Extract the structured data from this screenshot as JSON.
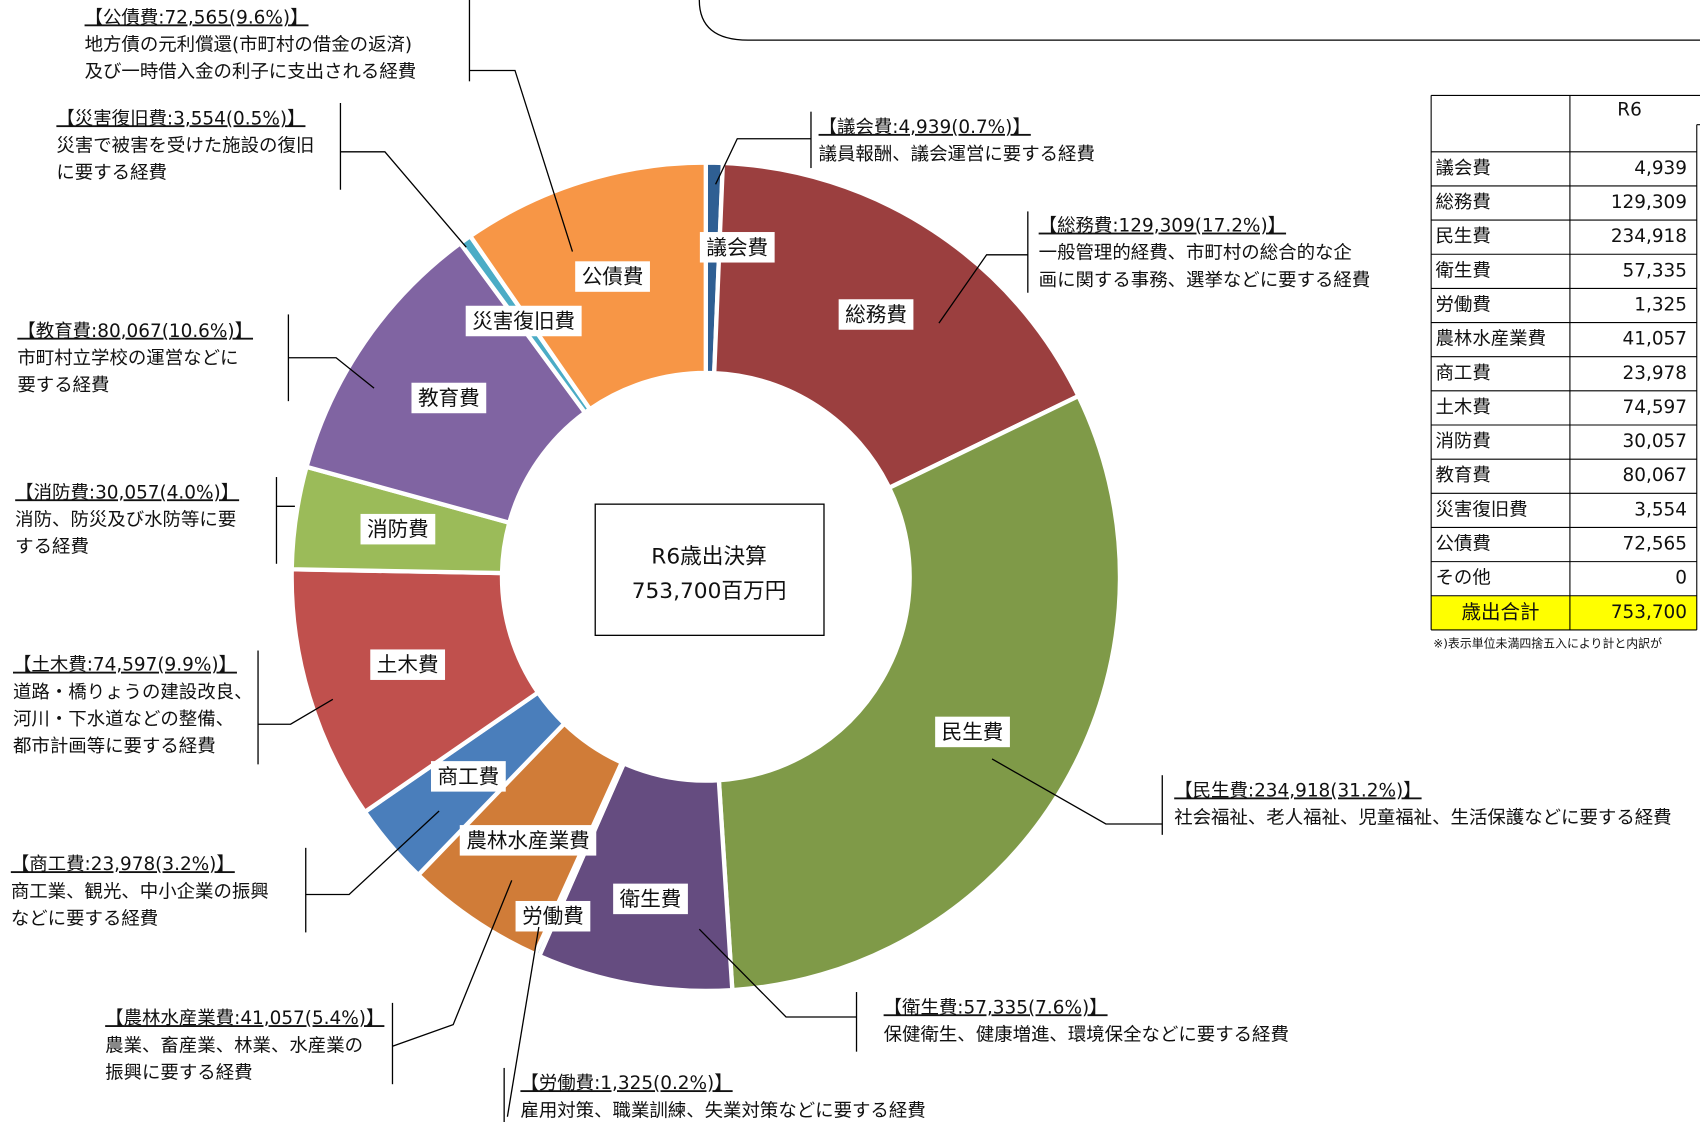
{
  "chart_data": {
    "type": "donut",
    "center_label": [
      "R6歳出決算",
      "753,700百万円"
    ],
    "categories": [
      "議会費",
      "総務費",
      "民生費",
      "衛生費",
      "労働費",
      "農林水産業費",
      "商工費",
      "土木費",
      "消防費",
      "教育費",
      "災害復旧費",
      "公債費"
    ],
    "values": [
      4939,
      129309,
      234918,
      57335,
      1325,
      41057,
      23978,
      74597,
      30057,
      80067,
      3554,
      72565
    ],
    "colors": [
      "#2f5f93",
      "#9b3f3f",
      "#7f9a48",
      "#654c80",
      "#3c9bb5",
      "#d07c38",
      "#4a7ebb",
      "#c0504d",
      "#9bbb59",
      "#8064a2",
      "#4bacc6",
      "#f79646"
    ],
    "callouts": [
      {
        "heading": "【議会費:4,939(0.7%)】",
        "description": [
          "議員報酬、議会運営に要する経費"
        ]
      },
      {
        "heading": "【総務費:129,309(17.2%)】",
        "description": [
          "一般管理的経費、市町村の総合的な企",
          "画に関する事務、選挙などに要する経費"
        ]
      },
      {
        "heading": "【民生費:234,918(31.2%)】",
        "description": [
          "社会福祉、老人福祉、児童福祉、生活保護などに要する経費"
        ]
      },
      {
        "heading": "【衛生費:57,335(7.6%)】",
        "description": [
          "保健衛生、健康増進、環境保全などに要する経費"
        ]
      },
      {
        "heading": "【労働費:1,325(0.2%)】",
        "description": [
          "雇用対策、職業訓練、失業対策などに要する経費"
        ]
      },
      {
        "heading": "【農林水産業費:41,057(5.4%)】",
        "description": [
          "農業、畜産業、林業、水産業の",
          "振興に要する経費"
        ]
      },
      {
        "heading": "【商工費:23,978(3.2%)】",
        "description": [
          "商工業、観光、中小企業の振興",
          "などに要する経費"
        ]
      },
      {
        "heading": "【土木費:74,597(9.9%)】",
        "description": [
          "道路・橋りょうの建設改良、",
          "河川・下水道などの整備、",
          "都市計画等に要する経費"
        ]
      },
      {
        "heading": "【消防費:30,057(4.0%)】",
        "description": [
          "消防、防災及び水防等に要",
          "する経費"
        ]
      },
      {
        "heading": "【教育費:80,067(10.6%)】",
        "description": [
          "市町村立学校の運営などに",
          "要する経費"
        ]
      },
      {
        "heading": "【災害復旧費:3,554(0.5%)】",
        "description": [
          "災害で被害を受けた施設の復旧",
          "に要する経費"
        ]
      },
      {
        "heading": "【公債費:72,565(9.6%)】",
        "description": [
          "地方債の元利償還(市町村の借金の返済)",
          "及び一時借入金の利子に支出される経費"
        ]
      }
    ]
  },
  "table": {
    "header": "R6",
    "rows": [
      [
        "議会費",
        "4,939"
      ],
      [
        "総務費",
        "129,309"
      ],
      [
        "民生費",
        "234,918"
      ],
      [
        "衛生費",
        "57,335"
      ],
      [
        "労働費",
        "1,325"
      ],
      [
        "農林水産業費",
        "41,057"
      ],
      [
        "商工費",
        "23,978"
      ],
      [
        "土木費",
        "74,597"
      ],
      [
        "消防費",
        "30,057"
      ],
      [
        "教育費",
        "80,067"
      ],
      [
        "災害復旧費",
        "3,554"
      ],
      [
        "公債費",
        "72,565"
      ],
      [
        "その他",
        "0"
      ]
    ],
    "total": [
      "歳出合計",
      "753,700"
    ],
    "footnote": "※)表示単位未満四捨五入により計と内訳が"
  }
}
